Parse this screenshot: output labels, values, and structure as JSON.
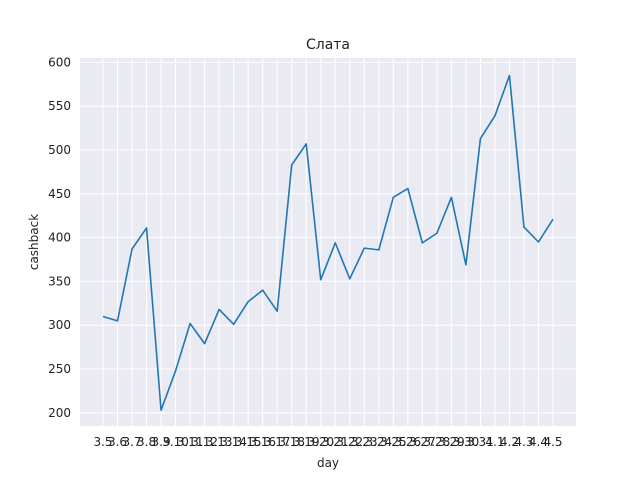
{
  "chart_data": {
    "type": "line",
    "title": "Слата",
    "xlabel": "day",
    "ylabel": "cashback",
    "categories": [
      "3.5",
      "3.6",
      "3.7",
      "3.8",
      "3.9",
      "3.10",
      "3.11",
      "3.12",
      "3.13",
      "3.14",
      "3.15",
      "3.16",
      "3.17",
      "3.18",
      "3.19",
      "3.20",
      "3.21",
      "3.22",
      "3.23",
      "3.24",
      "3.25",
      "3.26",
      "3.27",
      "3.28",
      "3.29",
      "3.30",
      "3.31",
      "4.1",
      "4.2",
      "4.3",
      "4.4",
      "4.5"
    ],
    "series": [
      {
        "values": [
          310,
          305,
          387,
          411,
          203,
          248,
          302,
          279,
          318,
          301,
          327,
          340,
          316,
          483,
          507,
          352,
          394,
          353,
          388,
          386,
          446,
          456,
          394,
          405,
          446,
          369,
          513,
          539,
          585,
          412,
          395,
          421
        ],
        "color": "#1f77b4"
      }
    ],
    "ylim": [
      185,
      605
    ],
    "yticks": [
      200,
      250,
      300,
      350,
      400,
      450,
      500,
      550,
      600
    ],
    "grid": true,
    "background": "#eaeaf2",
    "grid_color": "#ffffff"
  }
}
